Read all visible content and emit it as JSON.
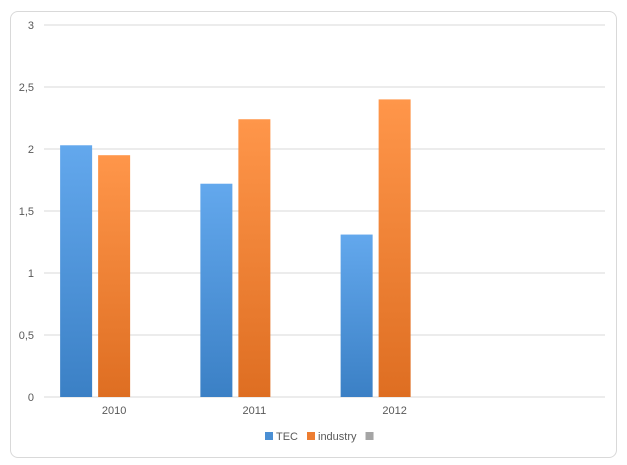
{
  "chart_data": {
    "type": "bar",
    "categories": [
      "2010",
      "2011",
      "2012",
      ""
    ],
    "series": [
      {
        "name": "TEC",
        "values": [
          2.03,
          1.72,
          1.31,
          null
        ],
        "color": "#4a8fd4"
      },
      {
        "name": "industry",
        "values": [
          1.95,
          2.24,
          2.4,
          null
        ],
        "color": "#ed7d31"
      },
      {
        "name": "",
        "values": [
          0,
          0,
          0,
          null
        ],
        "color": "#a5a5a5"
      }
    ],
    "ylim": [
      0,
      3
    ],
    "yticks": [
      "0",
      "0,5",
      "1",
      "1,5",
      "2",
      "2,5",
      "3"
    ],
    "ytick_values": [
      0,
      0.5,
      1,
      1.5,
      2,
      2.5,
      3
    ],
    "grid": true,
    "legend_position": "bottom"
  }
}
